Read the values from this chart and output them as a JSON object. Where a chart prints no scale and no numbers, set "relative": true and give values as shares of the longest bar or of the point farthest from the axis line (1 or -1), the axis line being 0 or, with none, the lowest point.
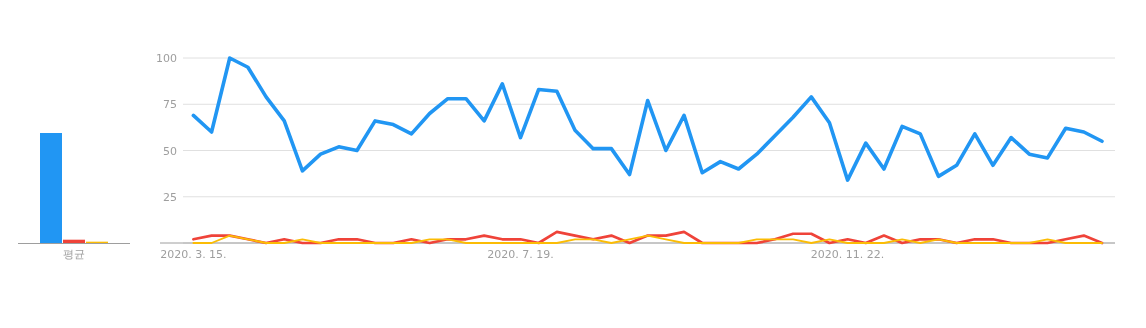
{
  "chart_data": [
    {
      "type": "bar",
      "relative": true,
      "categories": [
        "평균"
      ],
      "series": [
        {
          "color": "#2196f3",
          "values": [
            1
          ]
        },
        {
          "color": "#ef4339",
          "values": [
            0.03
          ]
        },
        {
          "color": "#fbbc05",
          "values": [
            0.012
          ]
        }
      ]
    },
    {
      "type": "line",
      "grid": "y",
      "marker": "none",
      "line_style": "solid",
      "x": [
        "2020-03-15",
        "2020-03-22",
        "2020-03-29",
        "2020-04-05",
        "2020-04-12",
        "2020-04-19",
        "2020-04-26",
        "2020-05-03",
        "2020-05-10",
        "2020-05-17",
        "2020-05-24",
        "2020-05-31",
        "2020-06-07",
        "2020-06-14",
        "2020-06-21",
        "2020-06-28",
        "2020-07-05",
        "2020-07-12",
        "2020-07-19",
        "2020-07-26",
        "2020-08-02",
        "2020-08-09",
        "2020-08-16",
        "2020-08-23",
        "2020-08-30",
        "2020-09-06",
        "2020-09-13",
        "2020-09-20",
        "2020-09-27",
        "2020-10-04",
        "2020-10-11",
        "2020-10-18",
        "2020-10-25",
        "2020-11-01",
        "2020-11-08",
        "2020-11-15",
        "2020-11-22",
        "2020-11-29",
        "2020-12-06",
        "2020-12-13",
        "2020-12-20",
        "2020-12-27",
        "2021-01-03",
        "2021-01-10",
        "2021-01-17",
        "2021-01-24",
        "2021-01-31",
        "2021-02-07",
        "2021-02-14",
        "2021-02-21",
        "2021-02-28"
      ],
      "xlim": [
        "2020-03-11",
        "2021-03-05"
      ],
      "xticks": [
        {
          "value": "2020-03-15",
          "label": "2020. 3. 15."
        },
        {
          "value": "2020-07-19",
          "label": "2020. 7. 19."
        },
        {
          "value": "2020-11-22",
          "label": "2020. 11. 22."
        }
      ],
      "ylim": [
        0,
        100
      ],
      "yticks": [
        {
          "value": 0,
          "label": null
        },
        25,
        50,
        75,
        100
      ],
      "series": [
        {
          "color": "#2196f3",
          "values": [
            69,
            60,
            100,
            95,
            79,
            66,
            39,
            48,
            52,
            50,
            66,
            64,
            59,
            70,
            78,
            78,
            66,
            86,
            57,
            83,
            82,
            61,
            51,
            51,
            37,
            77,
            50,
            69,
            38,
            44,
            40,
            48,
            58,
            68,
            79,
            65,
            34,
            54,
            40,
            63,
            59,
            36,
            42,
            59,
            42,
            57,
            48,
            46,
            62,
            60,
            55
          ]
        },
        {
          "color": "#ef4339",
          "values": [
            2,
            4,
            4,
            2,
            0,
            2,
            0,
            0,
            2,
            2,
            0,
            0,
            2,
            0,
            2,
            2,
            4,
            2,
            2,
            0,
            6,
            4,
            2,
            4,
            0,
            4,
            4,
            6,
            0,
            0,
            0,
            0,
            2,
            5,
            5,
            0,
            2,
            0,
            4,
            0,
            2,
            2,
            0,
            2,
            2,
            0,
            0,
            0,
            2,
            4,
            0
          ]
        },
        {
          "color": "#fbbc05",
          "values": [
            0,
            0,
            4,
            2,
            0,
            0,
            2,
            0,
            0,
            0,
            0,
            0,
            0,
            2,
            2,
            0,
            0,
            0,
            0,
            0,
            0,
            2,
            2,
            0,
            2,
            4,
            2,
            0,
            0,
            0,
            0,
            2,
            2,
            2,
            0,
            2,
            0,
            0,
            0,
            2,
            0,
            2,
            0,
            0,
            0,
            0,
            0,
            2,
            0,
            0,
            0
          ]
        }
      ]
    }
  ]
}
